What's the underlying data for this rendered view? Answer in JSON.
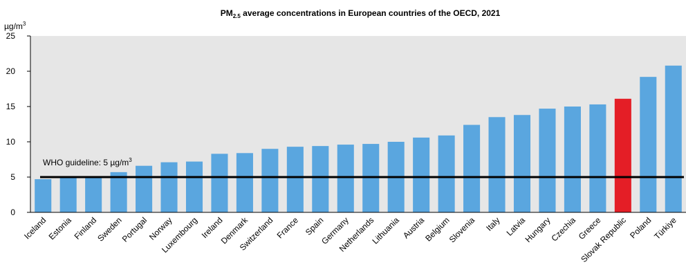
{
  "chart_data": {
    "type": "bar",
    "title": {
      "prefix": "PM",
      "subscript": "2.5",
      "suffix": " average concentrations in European countries of the OECD, 2021"
    },
    "y_unit": {
      "base": "µg/m",
      "superscript": "3"
    },
    "ylim": [
      0,
      25
    ],
    "yticks": [
      0,
      5,
      10,
      15,
      20,
      25
    ],
    "ytick_labels": [
      "0",
      "5",
      "10",
      "15",
      "20",
      "25"
    ],
    "grid": false,
    "categories": [
      "Iceland",
      "Estonia",
      "Finland",
      "Sweden",
      "Portugal",
      "Norway",
      "Luxembourg",
      "Ireland",
      "Denmark",
      "Switzerland",
      "France",
      "Spain",
      "Germany",
      "Netherlands",
      "Lithuania",
      "Austria",
      "Belgium",
      "Slovenia",
      "Italy",
      "Latvia",
      "Hungary",
      "Czechia",
      "Greece",
      "Slovak Republic",
      "Poland",
      "Türkiye"
    ],
    "values": [
      4.7,
      5.0,
      5.0,
      5.7,
      6.6,
      7.1,
      7.2,
      8.3,
      8.4,
      9.0,
      9.3,
      9.4,
      9.6,
      9.7,
      10.0,
      10.6,
      10.9,
      12.4,
      13.5,
      13.8,
      14.7,
      15.0,
      15.3,
      16.1,
      19.2,
      20.8
    ],
    "highlight": "Slovak Republic",
    "colors": {
      "bar": "#5aa6df",
      "highlight": "#e41e26",
      "plot_background": "#e6e6e6",
      "guideline": "#000000"
    },
    "guideline": {
      "value": 5,
      "label": "WHO guideline: 5 µg/m",
      "label_superscript": "3"
    }
  }
}
